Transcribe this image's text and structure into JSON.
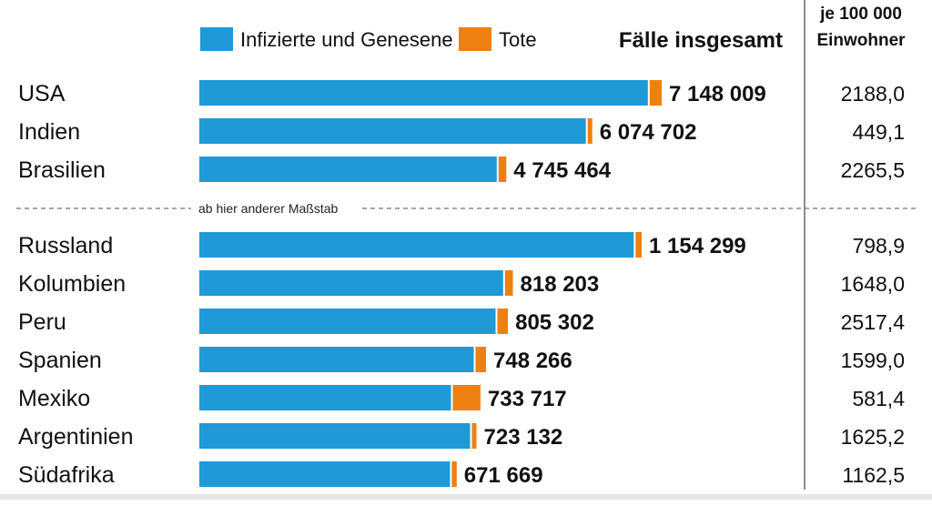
{
  "chart_data": {
    "type": "bar",
    "orientation": "horizontal",
    "stacked": true,
    "legend": [
      {
        "name": "Infizierte und Genesene",
        "color": "#1f9ad6"
      },
      {
        "name": "Tote",
        "color": "#ee8012"
      }
    ],
    "header_total": "Fälle insgesamt",
    "header_per_100k": [
      "je 100 000",
      "Einwohner"
    ],
    "scale_break_note": "ab hier anderer Maßstab",
    "groups": [
      {
        "max": 7148009,
        "rows": [
          {
            "country": "USA",
            "total": 7148009,
            "total_label": "7 148 009",
            "deaths_share": 0.03,
            "per_100k": "2188,0"
          },
          {
            "country": "Indien",
            "total": 6074702,
            "total_label": "6 074 702",
            "deaths_share": 0.016,
            "per_100k": "449,1"
          },
          {
            "country": "Brasilien",
            "total": 4745464,
            "total_label": "4 745 464",
            "deaths_share": 0.031,
            "per_100k": "2265,5"
          }
        ]
      },
      {
        "max": 1154299,
        "rows": [
          {
            "country": "Russland",
            "total": 1154299,
            "total_label": "1 154 299",
            "deaths_share": 0.018,
            "per_100k": "798,9"
          },
          {
            "country": "Kolumbien",
            "total": 818203,
            "total_label": "818 203",
            "deaths_share": 0.031,
            "per_100k": "1648,0"
          },
          {
            "country": "Peru",
            "total": 805302,
            "total_label": "805 302",
            "deaths_share": 0.04,
            "per_100k": "2517,4"
          },
          {
            "country": "Spanien",
            "total": 748266,
            "total_label": "748 266",
            "deaths_share": 0.043,
            "per_100k": "1599,0"
          },
          {
            "country": "Mexiko",
            "total": 733717,
            "total_label": "733 717",
            "deaths_share": 0.105,
            "per_100k": "581,4"
          },
          {
            "country": "Argentinien",
            "total": 723132,
            "total_label": "723 132",
            "deaths_share": 0.022,
            "per_100k": "1625,2"
          },
          {
            "country": "Südafrika",
            "total": 671669,
            "total_label": "671 669",
            "deaths_share": 0.026,
            "per_100k": "1162,5"
          }
        ]
      }
    ]
  }
}
